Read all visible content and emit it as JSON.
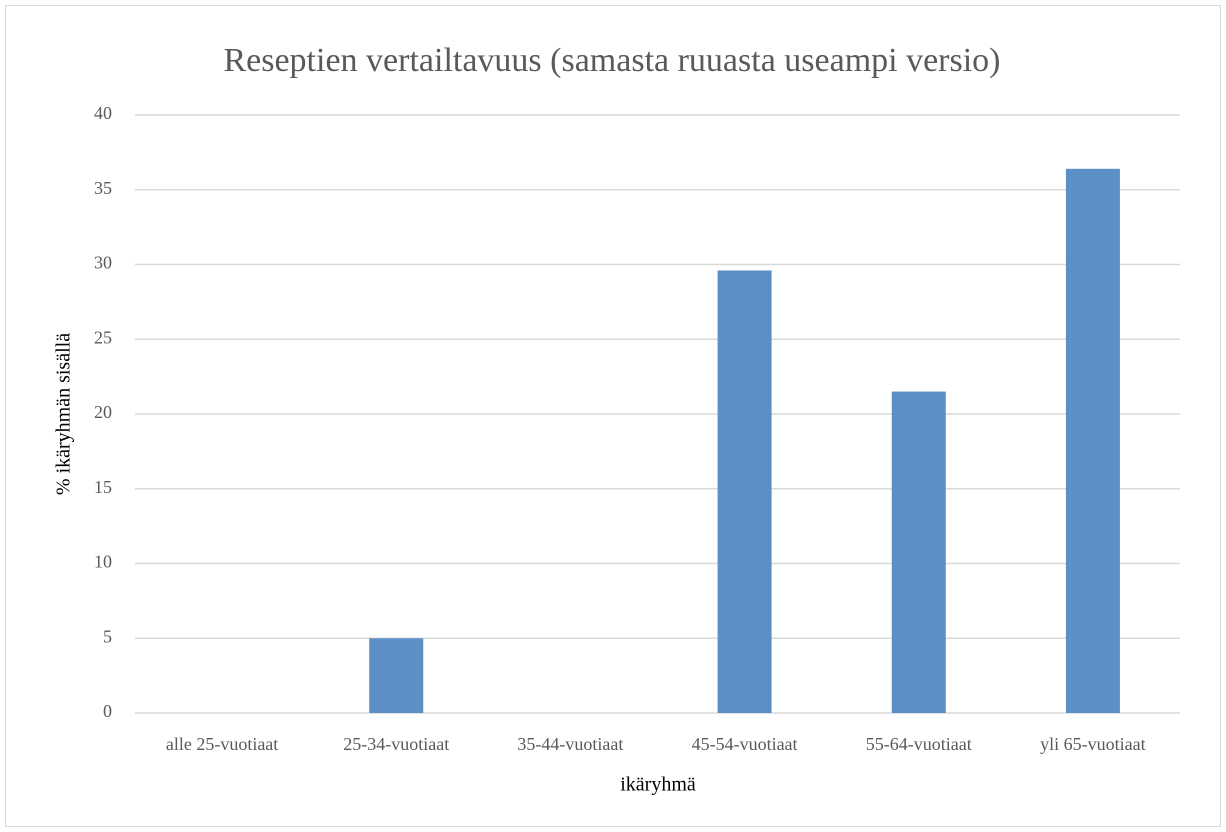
{
  "chart_data": {
    "type": "bar",
    "title": "Reseptien vertailtavuus (samasta ruuasta useampi versio)",
    "x_label": "ikäryhmä",
    "y_label": "% ikäryhmän sisällä",
    "categories": [
      "alle 25-vuotiaat",
      "25-34-vuotiaat",
      "35-44-vuotiaat",
      "45-54-vuotiaat",
      "55-64-vuotiaat",
      "yli 65-vuotiaat"
    ],
    "values": [
      0,
      5,
      0,
      29.6,
      21.5,
      36.4
    ],
    "color": "#5b8fc5",
    "ylim": [
      0,
      40
    ],
    "yticks": [
      0,
      5,
      10,
      15,
      20,
      25,
      30,
      35,
      40
    ],
    "grid": true
  }
}
